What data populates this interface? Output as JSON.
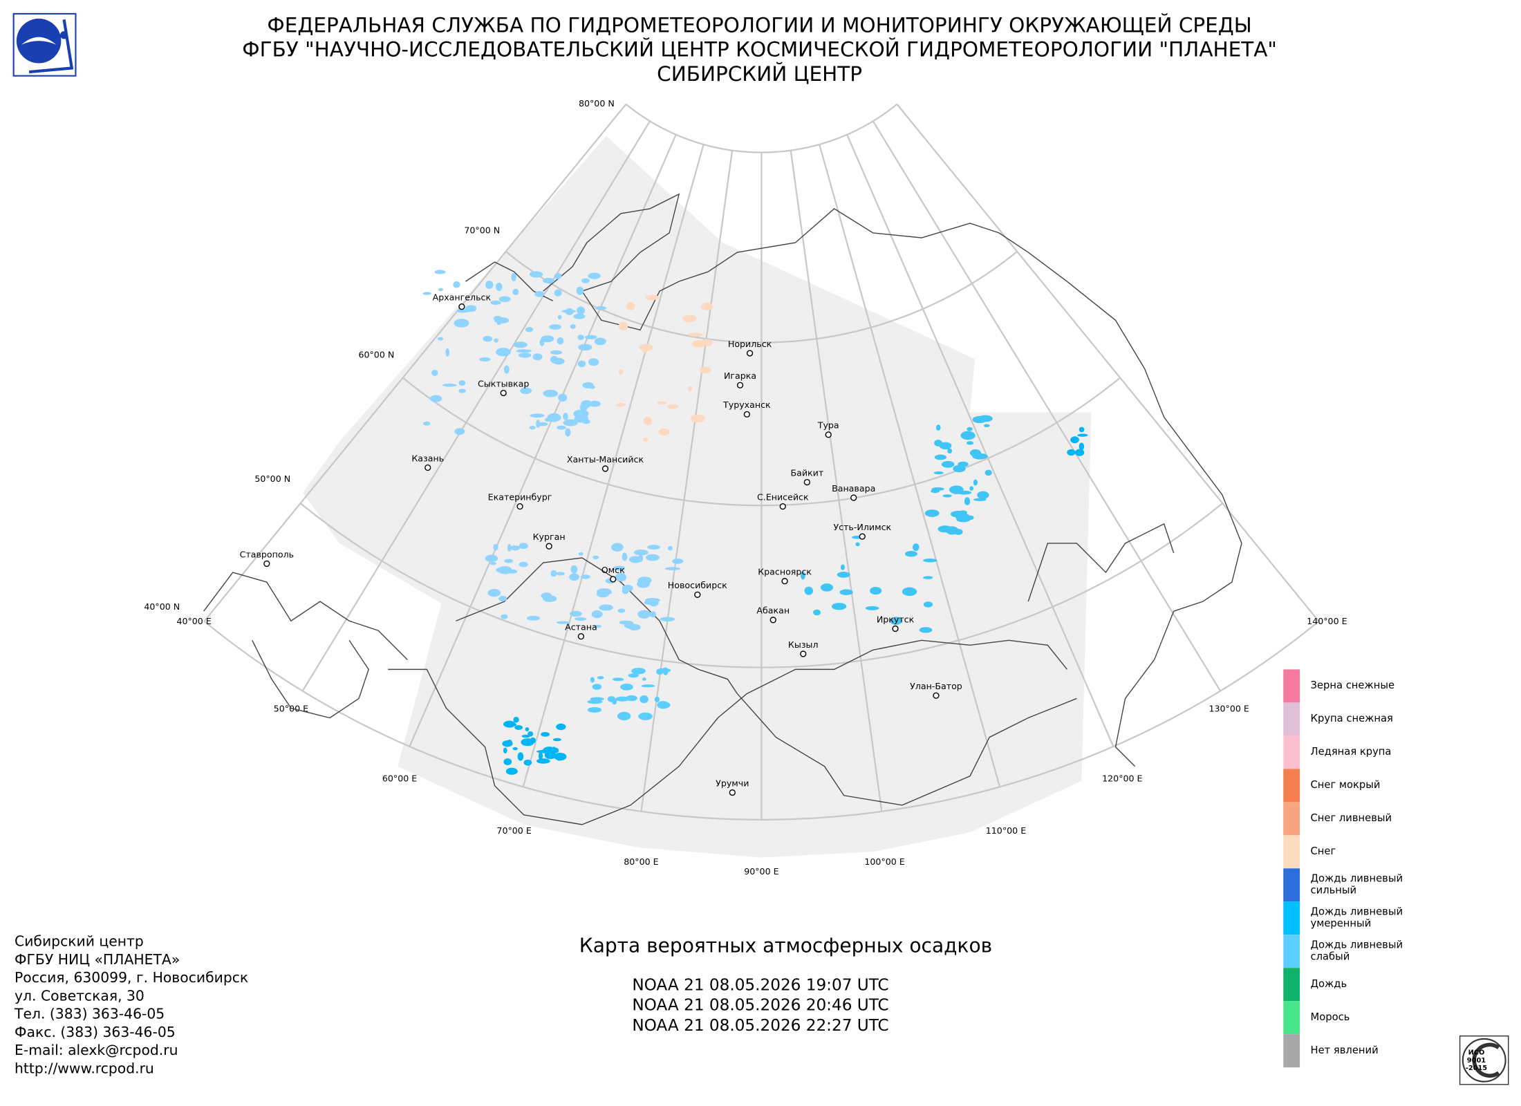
{
  "header": {
    "lines": [
      "ФЕДЕРАЛЬНАЯ СЛУЖБА ПО ГИДРОМЕТЕОРОЛОГИИ И МОНИТОРИНГУ ОКРУЖАЮЩЕЙ СРЕДЫ",
      "ФГБУ \"НАУЧНО-ИССЛЕДОВАТЕЛЬСКИЙ ЦЕНТР КОСМИЧЕСКОЙ ГИДРОМЕТЕОРОЛОГИИ \"ПЛАНЕТА\"",
      "СИБИРСКИЙ ЦЕНТР"
    ]
  },
  "map": {
    "parallels": [
      "80°00 N",
      "70°00 N",
      "60°00 N",
      "50°00 N",
      "40°00 N"
    ],
    "meridians": [
      "40°00 E",
      "50°00 E",
      "60°00 E",
      "70°00 E",
      "80°00 E",
      "90°00 E",
      "100°00 E",
      "110°00 E",
      "120°00 E",
      "130°00 E",
      "140°00 E"
    ],
    "cities": [
      "Архангельск",
      "Сыктывкар",
      "Казань",
      "Ханты-Мансийск",
      "Екатеринбург",
      "Курган",
      "Омск",
      "Новосибирск",
      "Астана",
      "Ставрополь",
      "Норильск",
      "Игарка",
      "Туруханск",
      "Тура",
      "Байкит",
      "Ванавара",
      "С.Енисейск",
      "Усть-Илимск",
      "Красноярск",
      "Абакан",
      "Иркутск",
      "Кызыл",
      "Улан-Батор",
      "Урумчи"
    ]
  },
  "legend": {
    "items": [
      {
        "lines": [
          "Зерна снежные"
        ],
        "color": "#f47aa0"
      },
      {
        "lines": [
          "Крупа снежная"
        ],
        "color": "#e0bfd9"
      },
      {
        "lines": [
          "Ледяная крупа"
        ],
        "color": "#fbbfd0"
      },
      {
        "lines": [
          "Снег мокрый"
        ],
        "color": "#f57f4e"
      },
      {
        "lines": [
          "Снег ливневый"
        ],
        "color": "#f8a47f"
      },
      {
        "lines": [
          "Снег"
        ],
        "color": "#fcdcbf"
      },
      {
        "lines": [
          "Дождь ливневый",
          "сильный"
        ],
        "color": "#2a6fdb"
      },
      {
        "lines": [
          "Дождь ливневый",
          "умеренный"
        ],
        "color": "#00bfff"
      },
      {
        "lines": [
          "Дождь ливневый",
          "слабый"
        ],
        "color": "#5ccdff"
      },
      {
        "lines": [
          "Дождь"
        ],
        "color": "#11b36b"
      },
      {
        "lines": [
          "Морось"
        ],
        "color": "#47e68a"
      },
      {
        "lines": [
          "Нет явлений"
        ],
        "color": "#a8a8a8"
      }
    ]
  },
  "title": "Карта вероятных атмосферных осадков",
  "passes": [
    "NOAA 21 08.05.2026  19:07 UTC",
    "NOAA 21 08.05.2026  20:46 UTC",
    "NOAA 21 08.05.2026  22:27 UTC"
  ],
  "contact": [
    "Сибирский центр",
    "ФГБУ НИЦ «ПЛАНЕТА»",
    "Россия, 630099, г. Новосибирск",
    "ул. Советская, 30",
    "Тел. (383) 363-46-05",
    "Факс. (383) 363-46-05",
    "E-mail: alexk@rcpod.ru",
    "http://www.rcpod.ru"
  ],
  "badge": [
    "ИСО",
    "9001",
    "-2015"
  ]
}
